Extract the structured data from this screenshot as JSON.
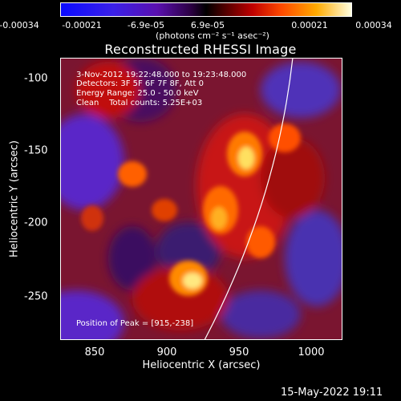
{
  "title": "Reconstructed RHESSI Image",
  "colorbar": {
    "tick_labels": [
      "-0.00034",
      "-0.00021",
      "-6.9e-05",
      "6.9e-05",
      "0.00021",
      "0.00034"
    ],
    "units": "(photons cm⁻² s⁻¹ asec⁻²)"
  },
  "annotations": {
    "time_range": "3-Nov-2012 19:22:48.000 to 19:23:48.000",
    "detectors": "Detectors: 3F 5F 6F 7F 8F, Att 0",
    "energy": "Energy Range: 25.0 - 50.0 keV",
    "clean": "Clean    Total counts: 5.25E+03",
    "peak": "Position of Peak = [915,-238]"
  },
  "axes": {
    "xlabel": "Heliocentric X (arcsec)",
    "ylabel": "Heliocentric Y (arcsec)",
    "x_ticks": [
      "850",
      "900",
      "950",
      "1000"
    ],
    "y_ticks": [
      "-100",
      "-150",
      "-200",
      "-250"
    ]
  },
  "footer": {
    "timestamp": "15-May-2022 19:11"
  }
}
